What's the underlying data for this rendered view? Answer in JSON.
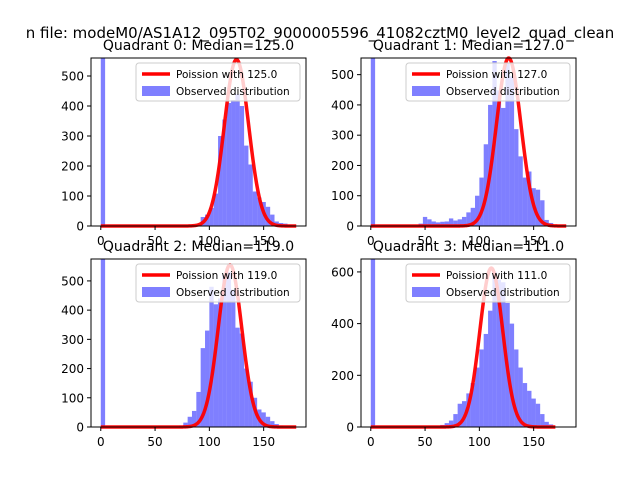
{
  "chart_data": {
    "type": "bar",
    "suptitle": "n file: modeM0/AS1A12_095T02_9000005596_41082cztM0_level2_quad_clean",
    "panels": [
      {
        "title": "Quadrant 0: Median=125.0",
        "median": 125.0,
        "xlim": [
          -9,
          189
        ],
        "ylim": [
          0,
          560
        ],
        "xticks": [
          0,
          50,
          100,
          150
        ],
        "yticks": [
          0,
          100,
          200,
          300,
          400,
          500
        ],
        "legend": {
          "line_label": "Poission with 125.0",
          "hist_label": "Observed distribution",
          "placement": "upper right"
        },
        "hist": {
          "bin_width": 4,
          "bin_starts": [
            0,
            4,
            8,
            12,
            16,
            20,
            24,
            28,
            32,
            36,
            40,
            44,
            48,
            52,
            56,
            60,
            64,
            68,
            72,
            76,
            80,
            84,
            88,
            92,
            96,
            100,
            104,
            108,
            112,
            116,
            120,
            124,
            128,
            132,
            136,
            140,
            144,
            148,
            152,
            156,
            160,
            164,
            168,
            172,
            176
          ],
          "counts": [
            560,
            0,
            0,
            0,
            0,
            0,
            0,
            0,
            0,
            0,
            0,
            0,
            0,
            0,
            0,
            0,
            0,
            0,
            0,
            0,
            0,
            0,
            5,
            30,
            38,
            60,
            108,
            300,
            355,
            410,
            420,
            440,
            400,
            268,
            205,
            115,
            95,
            80,
            64,
            38,
            15,
            10,
            8,
            5,
            0
          ]
        },
        "curve": {
          "x_range": [
            0,
            180
          ],
          "peak": 555
        }
      },
      {
        "title": "Quadrant 1: Median=127.0",
        "median": 127.0,
        "xlim": [
          -9,
          189
        ],
        "ylim": [
          0,
          555
        ],
        "xticks": [
          0,
          50,
          100,
          150
        ],
        "yticks": [
          0,
          100,
          200,
          300,
          400,
          500
        ],
        "legend": {
          "line_label": "Poission with 127.0",
          "hist_label": "Observed distribution",
          "placement": "upper right"
        },
        "hist": {
          "bin_width": 4,
          "bin_starts": [
            0,
            4,
            8,
            12,
            16,
            20,
            24,
            28,
            32,
            36,
            40,
            44,
            48,
            52,
            56,
            60,
            64,
            68,
            72,
            76,
            80,
            84,
            88,
            92,
            96,
            100,
            104,
            108,
            112,
            116,
            120,
            124,
            128,
            132,
            136,
            140,
            144,
            148,
            152,
            156,
            160,
            164,
            168,
            172,
            176
          ],
          "counts": [
            555,
            0,
            0,
            0,
            0,
            0,
            0,
            0,
            0,
            0,
            0,
            8,
            30,
            22,
            15,
            12,
            14,
            15,
            25,
            18,
            22,
            30,
            45,
            60,
            100,
            160,
            270,
            400,
            545,
            448,
            390,
            540,
            495,
            320,
            230,
            160,
            180,
            125,
            120,
            85,
            20,
            10,
            0,
            0,
            0
          ]
        },
        "curve": {
          "x_range": [
            0,
            180
          ],
          "peak": 555
        }
      },
      {
        "title": "Quadrant 2: Median=119.0",
        "median": 119.0,
        "xlim": [
          -9,
          189
        ],
        "ylim": [
          0,
          575
        ],
        "xticks": [
          0,
          50,
          100,
          150
        ],
        "yticks": [
          0,
          100,
          200,
          300,
          400,
          500
        ],
        "legend": {
          "line_label": "Poission with 119.0",
          "hist_label": "Observed distribution",
          "placement": "upper right"
        },
        "hist": {
          "bin_width": 4,
          "bin_starts": [
            0,
            4,
            8,
            12,
            16,
            20,
            24,
            28,
            32,
            36,
            40,
            44,
            48,
            52,
            56,
            60,
            64,
            68,
            72,
            76,
            80,
            84,
            88,
            92,
            96,
            100,
            104,
            108,
            112,
            116,
            120,
            124,
            128,
            132,
            136,
            140,
            144,
            148,
            152,
            156,
            160,
            164,
            168,
            172,
            176
          ],
          "counts": [
            575,
            0,
            0,
            0,
            0,
            0,
            0,
            0,
            0,
            0,
            0,
            0,
            0,
            0,
            0,
            0,
            0,
            0,
            5,
            15,
            35,
            55,
            120,
            270,
            330,
            480,
            420,
            440,
            520,
            530,
            470,
            340,
            320,
            200,
            155,
            100,
            60,
            50,
            35,
            20,
            10,
            5,
            0,
            0,
            0
          ]
        },
        "curve": {
          "x_range": [
            0,
            180
          ],
          "peak": 555
        }
      },
      {
        "title": "Quadrant 3: Median=111.0",
        "median": 111.0,
        "xlim": [
          -9,
          189
        ],
        "ylim": [
          0,
          650
        ],
        "xticks": [
          0,
          50,
          100,
          150
        ],
        "yticks": [
          0,
          200,
          400,
          600
        ],
        "legend": {
          "line_label": "Poission with 111.0",
          "hist_label": "Observed distribution",
          "placement": "upper right"
        },
        "hist": {
          "bin_width": 4,
          "bin_starts": [
            0,
            4,
            8,
            12,
            16,
            20,
            24,
            28,
            32,
            36,
            40,
            44,
            48,
            52,
            56,
            60,
            64,
            68,
            72,
            76,
            80,
            84,
            88,
            92,
            96,
            100,
            104,
            108,
            112,
            116,
            120,
            124,
            128,
            132,
            136,
            140,
            144,
            148,
            152,
            156,
            160,
            164,
            168,
            172
          ],
          "counts": [
            650,
            0,
            0,
            0,
            0,
            0,
            0,
            0,
            0,
            0,
            0,
            0,
            0,
            0,
            0,
            0,
            8,
            15,
            25,
            50,
            90,
            100,
            130,
            170,
            230,
            300,
            360,
            450,
            600,
            570,
            560,
            480,
            400,
            300,
            230,
            170,
            140,
            110,
            90,
            50,
            20,
            10,
            0,
            0
          ]
        },
        "curve": {
          "x_range": [
            0,
            170
          ],
          "peak": 615
        }
      }
    ]
  }
}
